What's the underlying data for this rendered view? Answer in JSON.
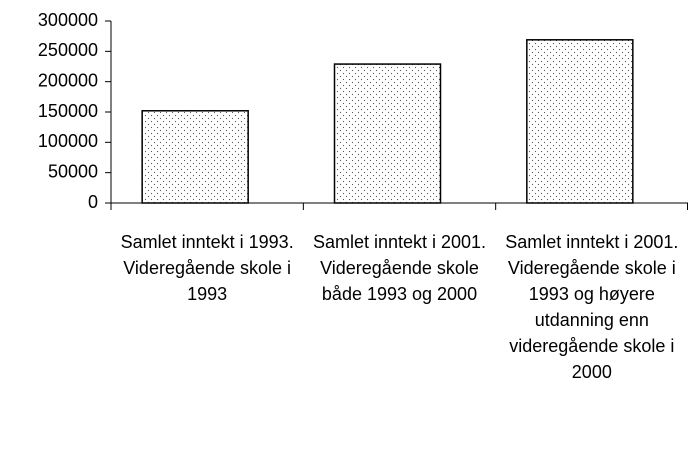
{
  "chart_data": {
    "type": "bar",
    "categories": [
      "Samlet inntekt i 1993. Videregående skole i 1993",
      "Samlet inntekt i 2001. Videregående skole både 1993 og 2000",
      "Samlet inntekt i 2001. Videregående skole i 1993 og høyere utdanning enn videregående skole i 2000"
    ],
    "values": [
      152000,
      229000,
      269000
    ],
    "color": "#ffffff",
    "ylim": [
      0,
      300000
    ],
    "yticks": [
      0,
      50000,
      100000,
      150000,
      200000,
      250000,
      300000
    ],
    "grid": false
  }
}
